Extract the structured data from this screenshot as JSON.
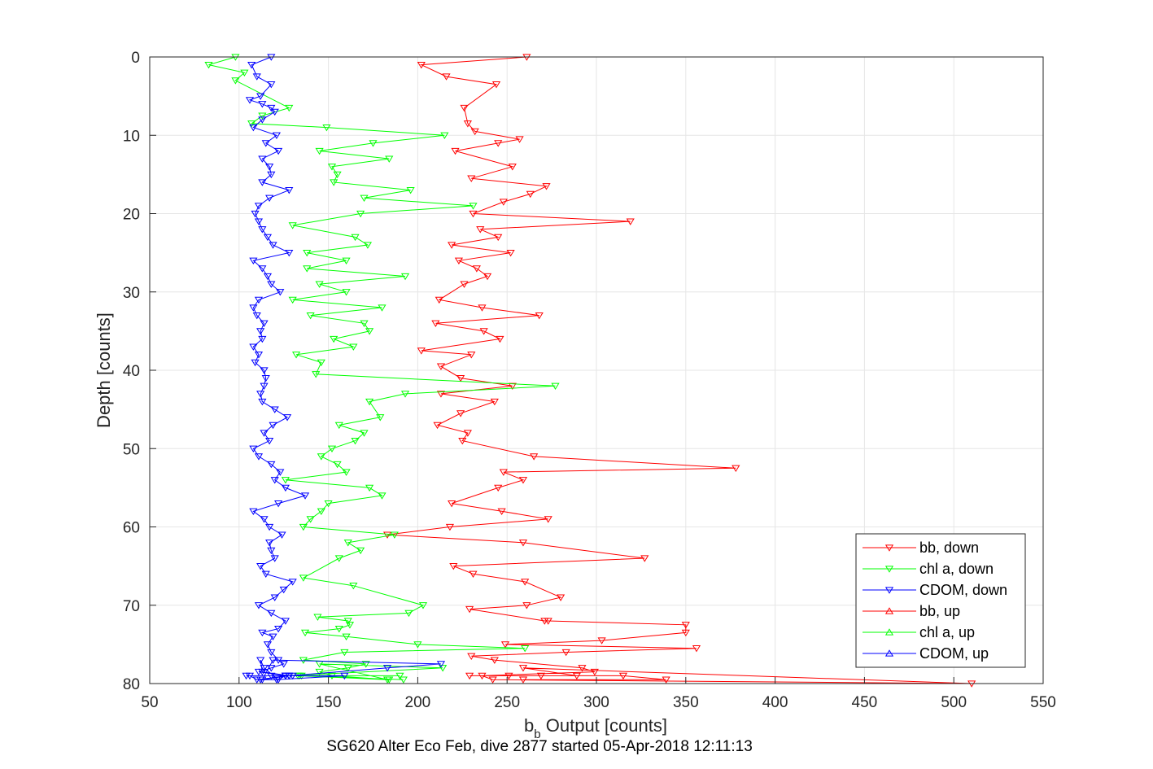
{
  "chart_data": {
    "type": "line",
    "title": "",
    "caption": "SG620 Alter Eco Feb, dive 2877 started 05-Apr-2018 12:11:13",
    "xlabel": {
      "main": "b",
      "sub": "b",
      "rest": " Output [counts]"
    },
    "ylabel": "Depth [counts]",
    "xlim": [
      50,
      550
    ],
    "ylim": [
      0,
      80
    ],
    "y_reversed": true,
    "xticks": [
      50,
      100,
      150,
      200,
      250,
      300,
      350,
      400,
      450,
      500,
      550
    ],
    "yticks": [
      0,
      10,
      20,
      30,
      40,
      50,
      60,
      70,
      80
    ],
    "grid": true,
    "legend_position": "bottom-right",
    "series": [
      {
        "name": "bb, down",
        "color": "#ff0000",
        "marker": "triangle-down",
        "x": [
          261,
          202,
          216,
          244,
          226,
          228,
          232,
          257,
          245,
          221,
          253,
          230,
          272,
          263,
          248,
          231,
          319,
          235,
          245,
          219,
          252,
          223,
          233,
          239,
          226,
          212,
          236,
          268,
          210,
          237,
          246,
          202,
          230,
          213,
          224,
          253,
          213,
          243,
          224,
          211,
          228,
          225,
          265,
          378,
          248,
          259,
          245,
          219,
          247,
          273,
          218,
          183,
          259,
          327,
          220,
          231,
          260,
          280,
          261,
          229,
          271,
          273,
          350,
          350,
          303,
          249,
          356,
          283,
          230,
          243,
          292,
          299,
          236,
          242,
          510,
          259,
          289,
          229,
          251,
          269,
          315,
          339,
          259
        ],
        "y": [
          0,
          1,
          2.5,
          3.5,
          6.5,
          8.5,
          9.5,
          10.5,
          11,
          12,
          14,
          15.5,
          16.5,
          17.5,
          18.5,
          20,
          21,
          22,
          23,
          24,
          25,
          26,
          27,
          28,
          29,
          31,
          32,
          33,
          34,
          35,
          36,
          37.5,
          38,
          39.5,
          41,
          42,
          43,
          44,
          45.5,
          47,
          48,
          49,
          51,
          52.5,
          53,
          54,
          55,
          57,
          58,
          59,
          60,
          61,
          62,
          64,
          65,
          66,
          67,
          69,
          70,
          70.5,
          72,
          72,
          72.5,
          73.5,
          74.5,
          75,
          75.5,
          76,
          76.5,
          77,
          78,
          78.5,
          79,
          79.5,
          80,
          78,
          79,
          79,
          79,
          79,
          79,
          79.5,
          79.5
        ]
      },
      {
        "name": "chl a, down",
        "color": "#00ff00",
        "marker": "triangle-down",
        "x": [
          98,
          83,
          103,
          98,
          128,
          113,
          107,
          149,
          215,
          175,
          145,
          184,
          152,
          155,
          153,
          196,
          170,
          231,
          168,
          130,
          165,
          172,
          138,
          160,
          138,
          193,
          145,
          160,
          130,
          180,
          140,
          170,
          173,
          153,
          164,
          132,
          146,
          143,
          277,
          193,
          173,
          179,
          156,
          170,
          165,
          152,
          146,
          155,
          160,
          126,
          173,
          180,
          150,
          146,
          140,
          136,
          187,
          161,
          168,
          156,
          136,
          164,
          203,
          195,
          144,
          161,
          162,
          156,
          137,
          160,
          200,
          260,
          159,
          136,
          171,
          161,
          145,
          152,
          184,
          133,
          190,
          134,
          128,
          214,
          145,
          183,
          135,
          192
        ],
        "y": [
          0,
          1,
          2,
          3,
          6.5,
          7.5,
          8.5,
          9,
          10,
          11,
          12,
          13,
          14,
          15,
          16,
          17,
          18,
          19,
          20,
          21.5,
          23,
          24,
          25,
          26,
          27,
          28,
          29,
          30,
          31,
          32,
          33,
          34,
          35,
          36,
          37,
          38,
          39,
          40.5,
          42,
          43,
          44,
          46,
          47,
          48,
          49,
          50,
          51,
          52,
          53,
          54,
          55,
          56,
          57,
          58,
          59,
          60,
          61,
          62,
          63,
          64,
          66.5,
          67.5,
          70,
          71,
          71.5,
          72,
          72.5,
          73,
          73.5,
          74,
          75,
          75.5,
          76,
          77,
          77.5,
          78,
          78.5,
          79,
          79.5,
          79,
          79,
          79,
          79,
          78,
          77.5,
          79.5,
          79,
          79.5
        ]
      },
      {
        "name": "CDOM, down",
        "color": "#0000ff",
        "marker": "triangle-down",
        "x": [
          118,
          107,
          110,
          118,
          112,
          106,
          113,
          118,
          120,
          113,
          108,
          121,
          115,
          122,
          113,
          117,
          118,
          113,
          128,
          117,
          111,
          109,
          111,
          113,
          116,
          119,
          128,
          108,
          113,
          116,
          118,
          123,
          111,
          108,
          110,
          114,
          112,
          113,
          108,
          111,
          109,
          114,
          115,
          114,
          112,
          113,
          120,
          127,
          119,
          114,
          117,
          108,
          111,
          118,
          123,
          120,
          126,
          137,
          122,
          108,
          114,
          117,
          124,
          117,
          118,
          120,
          112,
          115,
          130,
          125,
          120,
          111,
          118,
          126,
          122,
          113,
          119,
          116,
          118,
          122,
          125,
          118,
          111,
          126,
          122,
          114,
          112,
          113,
          128,
          113,
          119,
          213,
          183,
          128,
          110,
          106,
          130,
          104,
          118,
          126,
          112,
          121,
          159,
          126
        ],
        "y": [
          0,
          1,
          2.5,
          3.5,
          5,
          5.5,
          6,
          6.5,
          7,
          8,
          9,
          10,
          11,
          12,
          13,
          14,
          15,
          16,
          17,
          18,
          19,
          20,
          21,
          22,
          23,
          24,
          25,
          26,
          27,
          28,
          29,
          30,
          31,
          32,
          33,
          34,
          35,
          36,
          37,
          38,
          39,
          40,
          41,
          42,
          43,
          44,
          45,
          46,
          47,
          48,
          49,
          50,
          51,
          52,
          53,
          54,
          55,
          56,
          57,
          58,
          59,
          60,
          61,
          62,
          63,
          64,
          65,
          66,
          67,
          68,
          69,
          70,
          71,
          72,
          73,
          73.5,
          74,
          75,
          76,
          77,
          77.5,
          78,
          78.5,
          79,
          79.5,
          78,
          77,
          78.5,
          79,
          79.5,
          77,
          77.5,
          78,
          79,
          79.5,
          79,
          79,
          79,
          79,
          79,
          79.5,
          79.5,
          79,
          79
        ]
      },
      {
        "name": "bb, up",
        "color": "#ff0000",
        "marker": "triangle-up",
        "x": [],
        "y": []
      },
      {
        "name": "chl a, up",
        "color": "#00ff00",
        "marker": "triangle-up",
        "x": [],
        "y": []
      },
      {
        "name": "CDOM, up",
        "color": "#0000ff",
        "marker": "triangle-up",
        "x": [],
        "y": []
      }
    ]
  }
}
